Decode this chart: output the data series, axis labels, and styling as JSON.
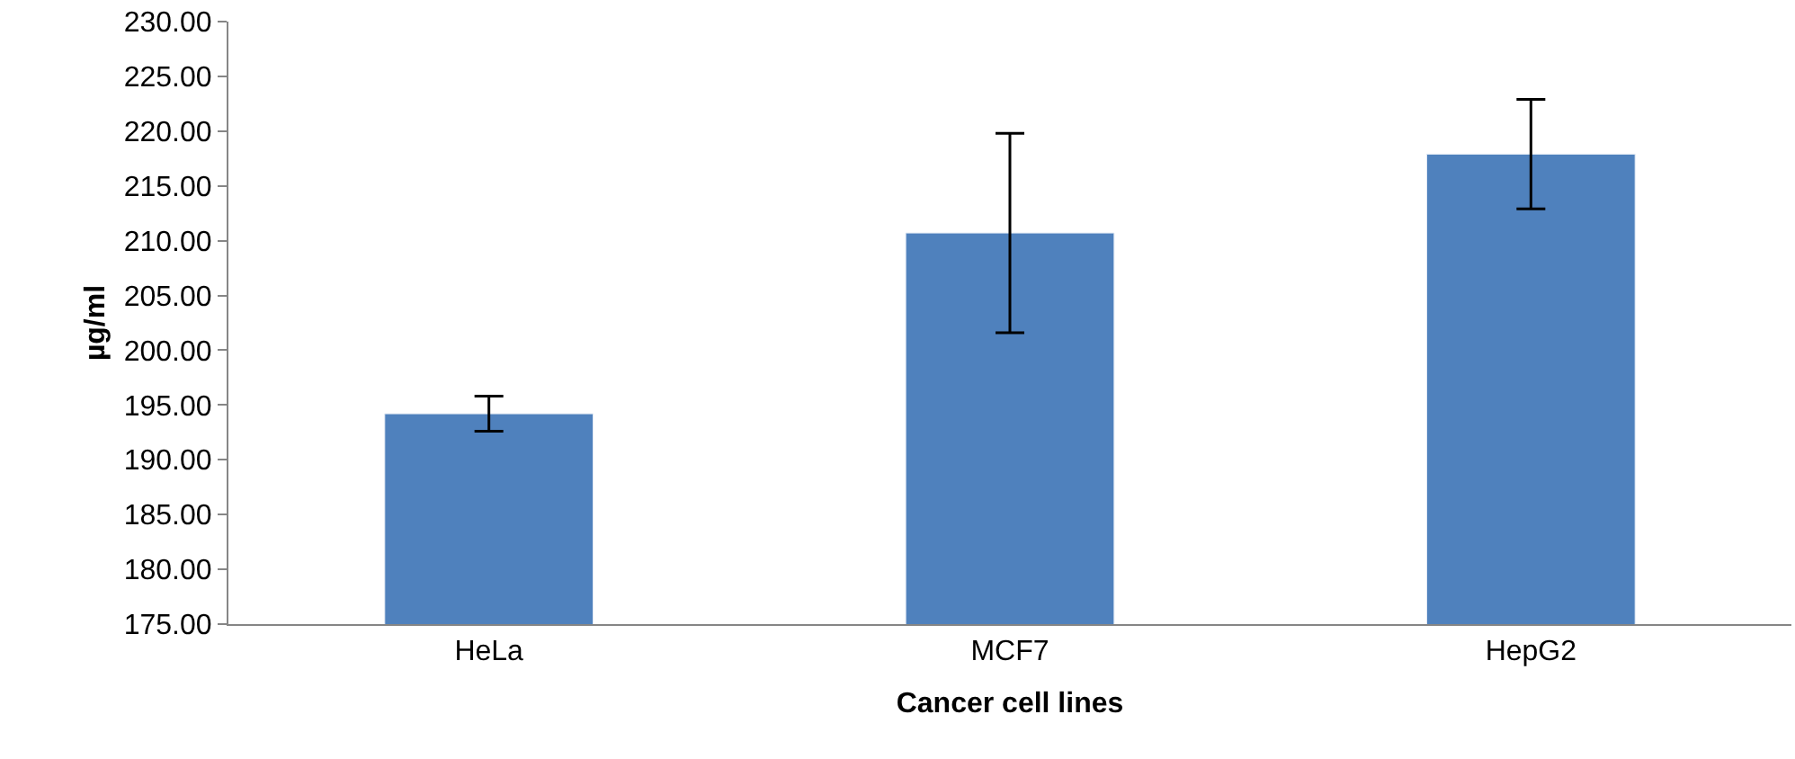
{
  "chart_data": {
    "type": "bar",
    "xlabel": "Cancer cell lines",
    "ylabel": "µg/ml",
    "categories": [
      "HeLa",
      "MCF7",
      "HepG2"
    ],
    "values": [
      194.2,
      210.7,
      217.9
    ],
    "errors": [
      1.6,
      9.1,
      5.0
    ],
    "color": "#4f81bd",
    "ylim": [
      175,
      230
    ],
    "yticks": [
      {
        "value": 175,
        "label": "175.00"
      },
      {
        "value": 180,
        "label": "180.00"
      },
      {
        "value": 185,
        "label": "185.00"
      },
      {
        "value": 190,
        "label": "190.00"
      },
      {
        "value": 195,
        "label": "195.00"
      },
      {
        "value": 200,
        "label": "200.00"
      },
      {
        "value": 205,
        "label": "205.00"
      },
      {
        "value": 210,
        "label": "210.00"
      },
      {
        "value": 215,
        "label": "215.00"
      },
      {
        "value": 220,
        "label": "220.00"
      },
      {
        "value": 225,
        "label": "225.00"
      },
      {
        "value": 230,
        "label": "230.00"
      }
    ]
  }
}
